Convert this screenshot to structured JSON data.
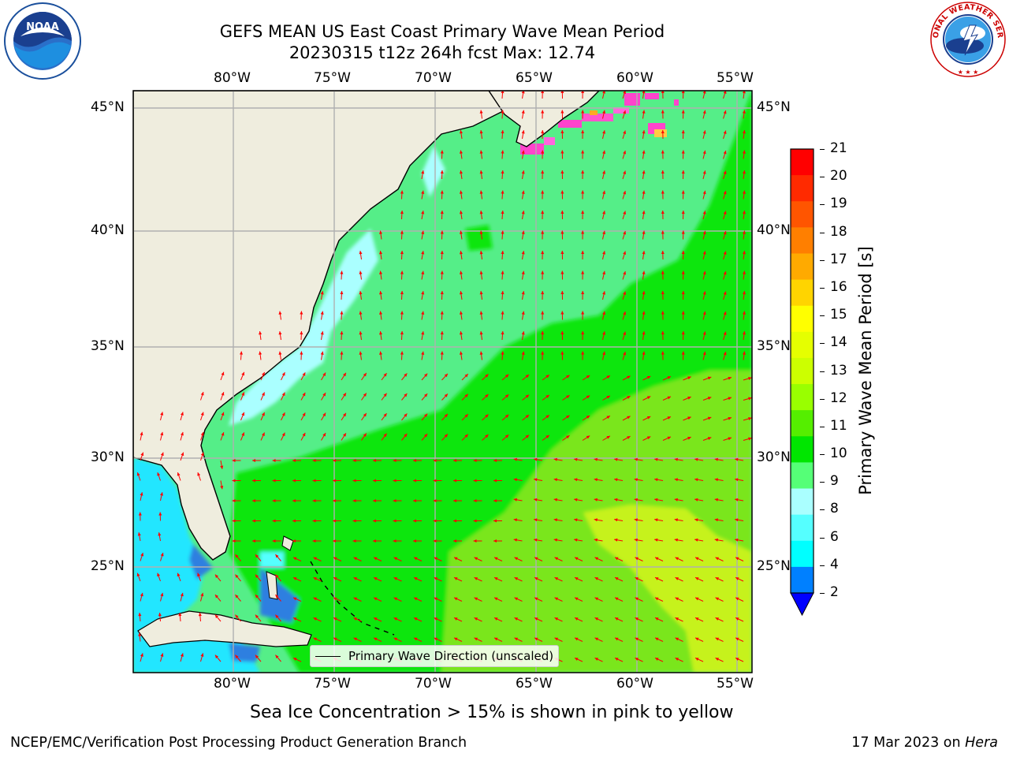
{
  "title": {
    "line1": "GEFS MEAN US East Coast Primary Wave Mean Period",
    "line2": "20230315 t12z 264h fcst   Max: 12.74"
  },
  "logos": {
    "noaa_text": "NOAA",
    "nws_text": "NATIONAL WEATHER SERVICE"
  },
  "map": {
    "lon_labels": [
      "80°W",
      "75°W",
      "70°W",
      "65°W",
      "60°W",
      "55°W"
    ],
    "lat_labels": [
      "45°N",
      "40°N",
      "35°N",
      "30°N",
      "25°N"
    ],
    "legend_label": "Primary Wave Direction (unscaled)",
    "colors": {
      "land": "#efedde",
      "arrow": "#ff0000",
      "grid": "#b0b0b0",
      "coast": "#000000",
      "seaice": "#ff33cc"
    },
    "fields_description_free": true
  },
  "colorbar": {
    "label": "Primary Wave Mean Period [s]",
    "ticks": [
      "21",
      "20",
      "19",
      "18",
      "17",
      "16",
      "15",
      "14",
      "13",
      "12",
      "11",
      "10",
      "9",
      "8",
      "6",
      "4",
      "2"
    ],
    "colors": [
      "#ff0000",
      "#ff2a00",
      "#ff5500",
      "#ff7f00",
      "#ffaa00",
      "#ffd400",
      "#ffff00",
      "#e5ff00",
      "#ccff00",
      "#99ff00",
      "#55ee00",
      "#00e600",
      "#55ff77",
      "#aaffff",
      "#55ffff",
      "#00ffff",
      "#0080ff"
    ],
    "extend_color": "#0000ff"
  },
  "note": "Sea Ice Concentration > 15% is shown in pink to yellow",
  "footer": {
    "left": "NCEP/EMC/Verification Post Processing Product Generation Branch",
    "right_date": "17 Mar 2023 on ",
    "right_machine": "Hera"
  }
}
